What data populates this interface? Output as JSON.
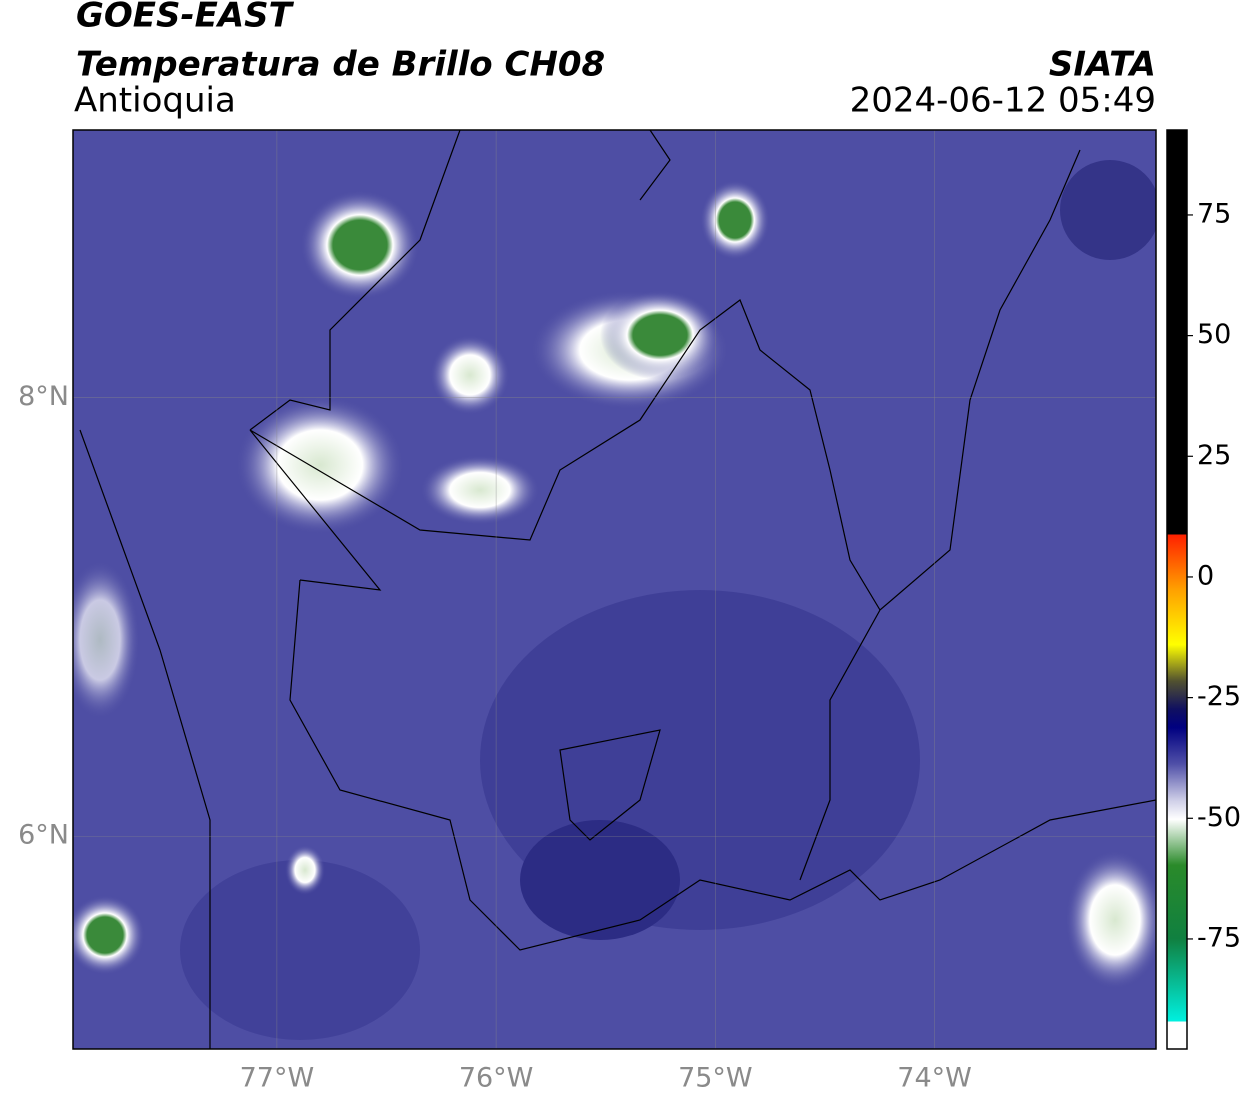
{
  "map": {
    "title": "GOES-EAST",
    "subtitle": "Temperatura de Brillo CH08",
    "region": "Antioquia",
    "source": "SIATA",
    "datetime": "2024-06-12 05:49",
    "xlim": [
      -77.93,
      -72.99
    ],
    "ylim": [
      5.03,
      9.22
    ],
    "xticks": [
      {
        "value": -77,
        "label": "77°W"
      },
      {
        "value": -76,
        "label": "76°W"
      },
      {
        "value": -75,
        "label": "75°W"
      },
      {
        "value": -74,
        "label": "74°W"
      }
    ],
    "yticks": [
      {
        "value": 6,
        "label": "6°N"
      },
      {
        "value": 8,
        "label": "8°N"
      }
    ],
    "grid": true,
    "colorbar": {
      "lim": [
        -97.8,
        92.6
      ],
      "ticks": [
        75,
        50,
        25,
        0,
        -25,
        -50,
        -75
      ]
    }
  }
}
